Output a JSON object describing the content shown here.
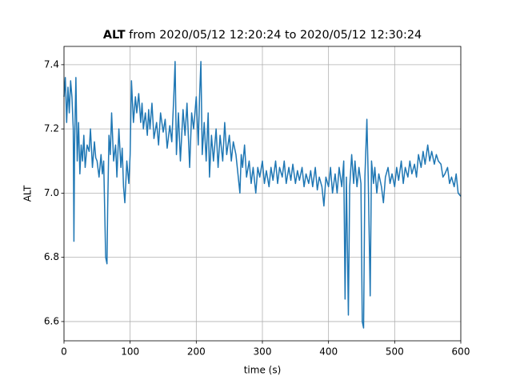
{
  "chart_data": {
    "type": "line",
    "title_bold": "ALT",
    "title": "from 2020/05/12 12:20:24 to 2020/05/12 12:30:24",
    "xlabel": "time (s)",
    "ylabel": "ALT",
    "color": "#1f77b4",
    "grid": true,
    "xlim": [
      0,
      600
    ],
    "xticks": [
      0,
      100,
      200,
      300,
      400,
      500,
      600
    ],
    "ylim": [
      6.54,
      7.457
    ],
    "yticks": [
      6.6,
      6.8,
      {
        "value": 7,
        "label": "7.0"
      },
      7.2,
      7.4
    ],
    "x": [
      0,
      2,
      4,
      6,
      8,
      10,
      12,
      14,
      15,
      16,
      18,
      20,
      22,
      24,
      26,
      28,
      30,
      32,
      35,
      38,
      40,
      43,
      46,
      48,
      50,
      53,
      56,
      58,
      60,
      62,
      63,
      65,
      66,
      68,
      70,
      72,
      75,
      78,
      80,
      83,
      86,
      88,
      90,
      92,
      95,
      98,
      100,
      102,
      105,
      108,
      110,
      113,
      116,
      118,
      120,
      123,
      126,
      128,
      130,
      133,
      136,
      140,
      143,
      146,
      150,
      153,
      156,
      160,
      163,
      166,
      168,
      170,
      173,
      176,
      180,
      183,
      186,
      190,
      193,
      196,
      200,
      203,
      205,
      207,
      209,
      212,
      215,
      218,
      220,
      223,
      226,
      230,
      233,
      236,
      240,
      243,
      246,
      250,
      253,
      256,
      260,
      263,
      266,
      268,
      270,
      273,
      276,
      280,
      283,
      286,
      290,
      293,
      296,
      300,
      303,
      306,
      310,
      313,
      316,
      320,
      323,
      326,
      330,
      333,
      336,
      340,
      343,
      346,
      350,
      353,
      356,
      360,
      363,
      366,
      370,
      373,
      376,
      380,
      383,
      386,
      390,
      393,
      396,
      400,
      403,
      406,
      410,
      413,
      416,
      420,
      423,
      425,
      427,
      430,
      432,
      435,
      438,
      440,
      443,
      446,
      449,
      451,
      453,
      455,
      458,
      460,
      463,
      465,
      468,
      470,
      473,
      476,
      480,
      483,
      486,
      490,
      493,
      496,
      500,
      503,
      506,
      510,
      513,
      516,
      520,
      523,
      526,
      530,
      533,
      536,
      540,
      543,
      546,
      550,
      553,
      556,
      560,
      563,
      566,
      570,
      573,
      576,
      580,
      583,
      586,
      590,
      593,
      596,
      600
    ],
    "values": [
      7.3,
      7.36,
      7.22,
      7.33,
      7.25,
      7.35,
      7.3,
      7.2,
      6.85,
      7.15,
      7.36,
      7.1,
      7.22,
      7.06,
      7.15,
      7.1,
      7.18,
      7.08,
      7.15,
      7.13,
      7.2,
      7.08,
      7.16,
      7.11,
      7.1,
      7.05,
      7.12,
      7.06,
      7.1,
      6.9,
      6.8,
      6.78,
      6.95,
      7.18,
      7.12,
      7.25,
      7.1,
      7.15,
      7.05,
      7.2,
      7.08,
      7.14,
      7.02,
      6.97,
      7.1,
      7.03,
      7.12,
      7.35,
      7.22,
      7.3,
      7.25,
      7.31,
      7.22,
      7.28,
      7.2,
      7.25,
      7.18,
      7.26,
      7.2,
      7.28,
      7.17,
      7.22,
      7.15,
      7.25,
      7.19,
      7.23,
      7.14,
      7.21,
      7.16,
      7.3,
      7.41,
      7.12,
      7.25,
      7.1,
      7.26,
      7.18,
      7.28,
      7.08,
      7.25,
      7.2,
      7.3,
      7.15,
      7.3,
      7.41,
      7.12,
      7.22,
      7.1,
      7.25,
      7.05,
      7.18,
      7.1,
      7.2,
      7.08,
      7.18,
      7.1,
      7.22,
      7.12,
      7.18,
      7.1,
      7.16,
      7.12,
      7.06,
      7.0,
      7.12,
      7.08,
      7.15,
      7.05,
      7.1,
      7.03,
      7.08,
      7.0,
      7.08,
      7.05,
      7.1,
      7.03,
      7.07,
      7.02,
      7.08,
      7.04,
      7.1,
      7.03,
      7.08,
      7.05,
      7.1,
      7.03,
      7.08,
      7.04,
      7.09,
      7.03,
      7.07,
      7.04,
      7.08,
      7.02,
      7.06,
      7.03,
      7.07,
      7.02,
      7.08,
      7.01,
      7.05,
      7.02,
      6.96,
      7.05,
      7.02,
      7.08,
      7.0,
      7.06,
      7.0,
      7.08,
      7.02,
      7.1,
      6.67,
      7.05,
      6.62,
      7.02,
      7.12,
      7.03,
      7.1,
      7.02,
      7.08,
      7.03,
      6.6,
      6.58,
      7.05,
      7.23,
      7.05,
      6.68,
      7.1,
      7.03,
      7.08,
      7.0,
      7.06,
      7.02,
      6.97,
      7.05,
      7.08,
      7.03,
      7.06,
      7.02,
      7.08,
      7.04,
      7.1,
      7.03,
      7.08,
      7.05,
      7.1,
      7.06,
      7.09,
      7.05,
      7.12,
      7.08,
      7.13,
      7.09,
      7.15,
      7.1,
      7.13,
      7.09,
      7.12,
      7.1,
      7.09,
      7.05,
      7.06,
      7.08,
      7.03,
      7.05,
      7.02,
      7.06,
      7.0,
      6.99
    ]
  }
}
